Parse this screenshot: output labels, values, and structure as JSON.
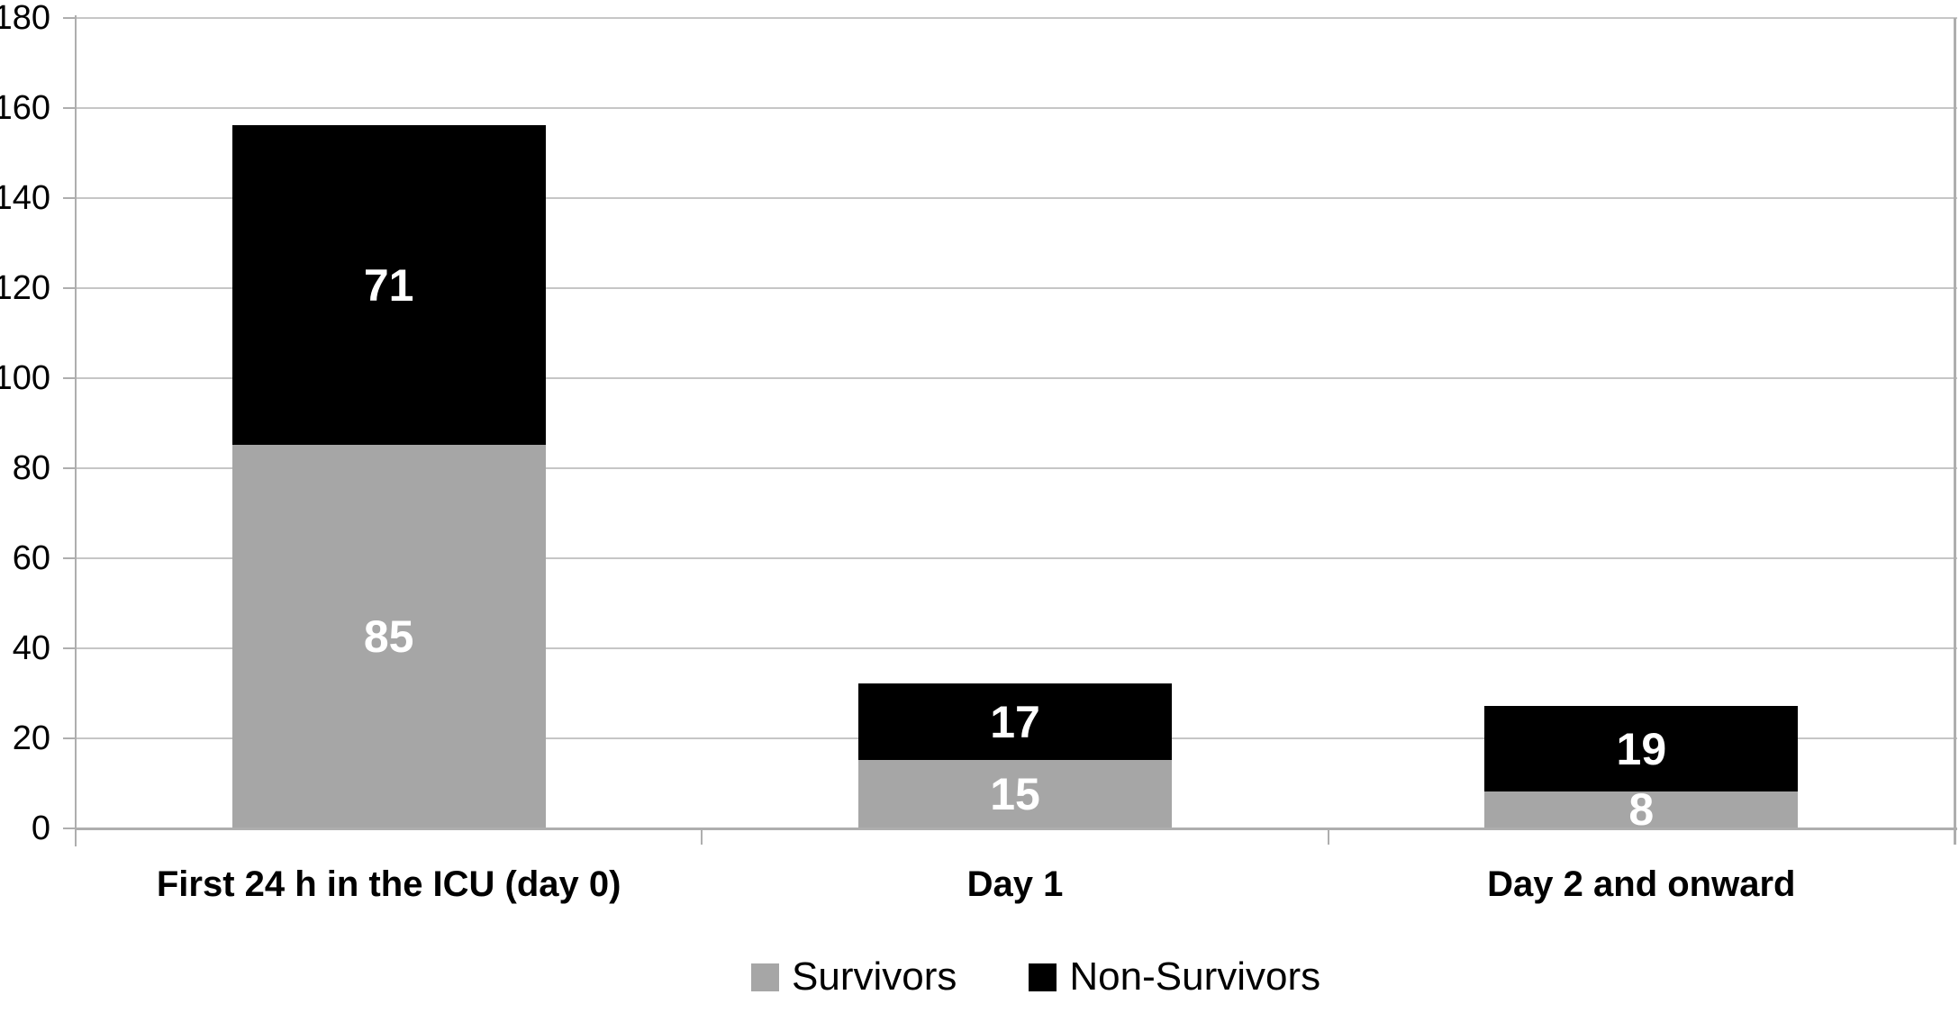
{
  "chart_data": {
    "type": "bar",
    "stacked": true,
    "title": "",
    "xlabel": "",
    "ylabel": "",
    "categories": [
      "First 24 h in the ICU (day 0)",
      "Day 1",
      "Day 2 and onward"
    ],
    "series": [
      {
        "name": "Survivors",
        "color": "#a6a6a6",
        "values": [
          85,
          15,
          8
        ]
      },
      {
        "name": "Non-Survivors",
        "color": "#000000",
        "values": [
          71,
          17,
          19
        ]
      }
    ],
    "stack_totals": [
      156,
      32,
      27
    ],
    "ylim": [
      0,
      180
    ],
    "ytick_step": 20,
    "yticks": [
      0,
      20,
      40,
      60,
      80,
      100,
      120,
      140,
      160,
      180
    ],
    "grid": "horizontal",
    "legend_position": "bottom",
    "value_label_style": "white-bold-inside"
  },
  "palette": {
    "background": "#ffffff",
    "gridline": "#c6c6c6",
    "axis": "#aeaeae",
    "tick_text": "#000000",
    "value_label": "#ffffff"
  }
}
